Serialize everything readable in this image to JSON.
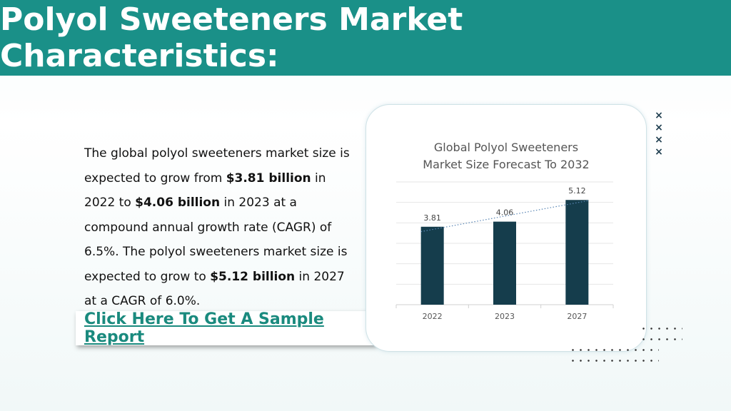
{
  "header": {
    "title": "Polyol Sweeteners Market Characteristics:"
  },
  "body": {
    "p1": "The global polyol sweeteners market size is expected to grow from ",
    "b1": "$3.81 billion",
    "p2": " in 2022 to ",
    "b2": "$4.06 billion",
    "p3": " in 2023 at a compound annual growth rate (CAGR) of 6.5%. The polyol sweeteners market size is expected to grow to ",
    "b3": "$5.12 billion",
    "p4": " in 2027 at a CAGR of 6.0%."
  },
  "cta": {
    "label": "Click Here To Get A Sample Report"
  },
  "decor": {
    "x_marks": [
      "×",
      "×",
      "×",
      "×"
    ]
  },
  "colors": {
    "header_bg": "#1a9088",
    "bar": "#153d4c",
    "link": "#1a8a7e",
    "trendline": "#5a86b4"
  },
  "chart_data": {
    "type": "bar",
    "title_line1": "Global Polyol Sweeteners",
    "title_line2": "Market Size Forecast To 2032",
    "categories": [
      "2022",
      "2023",
      "2027"
    ],
    "values": [
      3.81,
      4.06,
      5.12
    ],
    "value_labels": [
      "3.81",
      "4.06",
      "5.12"
    ],
    "ylim": [
      0,
      6
    ],
    "grid": true,
    "trendline": "linear, dotted",
    "legend": "none"
  }
}
